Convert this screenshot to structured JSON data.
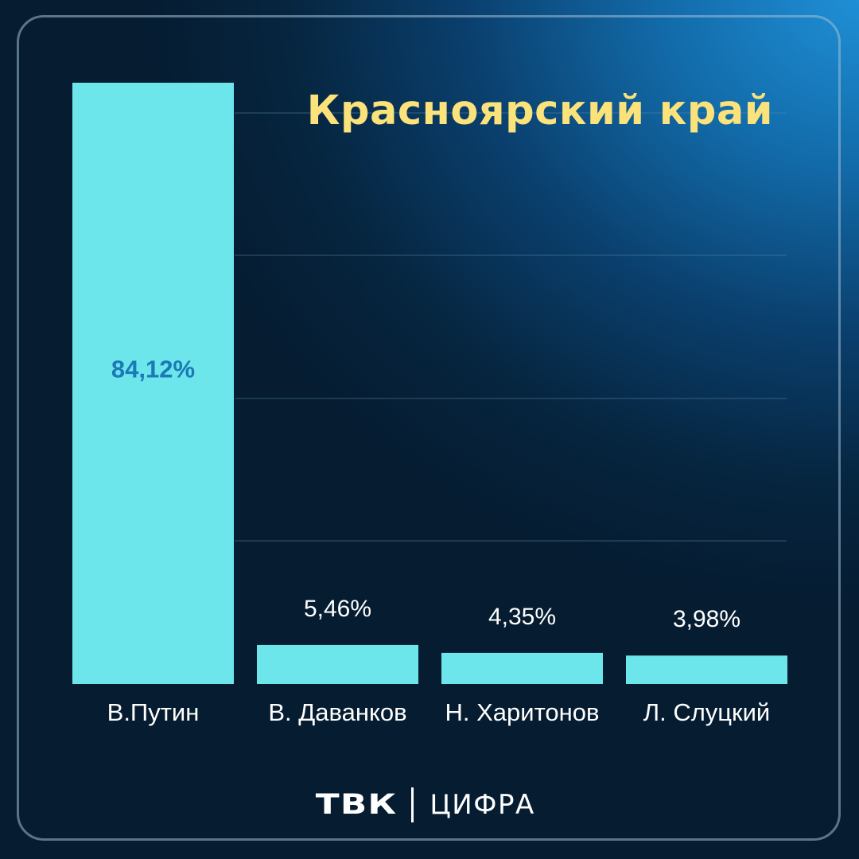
{
  "header": {
    "title": "Красноярский край"
  },
  "chart_data": {
    "type": "bar",
    "title": "Красноярский край",
    "categories": [
      "В.Путин",
      "В. Даванков",
      "Н. Харитонов",
      "Л. Слуцкий"
    ],
    "values": [
      84.12,
      5.46,
      4.35,
      3.98
    ],
    "value_labels": [
      "84,12%",
      "5,46%",
      "4,35%",
      "3,98%"
    ],
    "unit": "%",
    "ylim": [
      0,
      84.12
    ],
    "grid": true,
    "legend": "none"
  },
  "colors": {
    "bar": "#6ce6ea",
    "label_inside": "#1a79b6",
    "label_outside": "#ffffff",
    "grid": "#5a86a8",
    "title": "#fbe27a"
  },
  "footer": {
    "logo_tvk": "ТВК",
    "logo_cifra": "ЦИФРА"
  }
}
